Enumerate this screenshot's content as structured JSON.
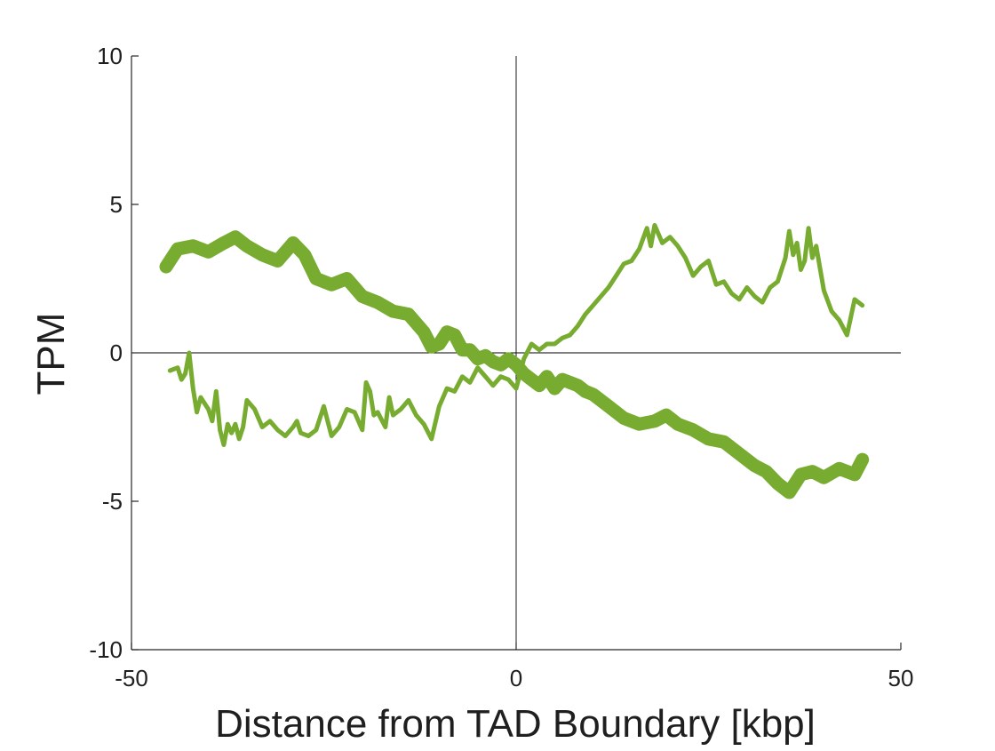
{
  "chart_data": {
    "type": "line",
    "title": "",
    "xlabel": "Distance from TAD Boundary [kbp]",
    "ylabel": "TPM",
    "xlim": [
      -50,
      50
    ],
    "ylim": [
      -10,
      10
    ],
    "xticks": [
      -50,
      0,
      50
    ],
    "yticks": [
      -10,
      -5,
      0,
      5,
      10
    ],
    "xtick_labels": [
      "-50",
      "0",
      "50"
    ],
    "ytick_labels": [
      "-10",
      "-5",
      "0",
      "5",
      "10"
    ],
    "grid": false,
    "legend": "none",
    "zero_lines": true,
    "series": [
      {
        "color": "#77ac30",
        "style": "thick",
        "x": [
          -45.5,
          -44,
          -42,
          -40,
          -38,
          -36.5,
          -35,
          -33,
          -31,
          -29,
          -27.5,
          -26,
          -24,
          -22,
          -20,
          -18,
          -16,
          -14,
          -12,
          -11,
          -10,
          -9,
          -8,
          -7,
          -6,
          -5,
          -4,
          -3,
          -2,
          -1,
          0,
          1,
          2,
          3,
          4,
          5,
          6,
          7,
          8,
          9,
          10,
          12,
          14,
          16,
          18,
          19.5,
          21,
          23,
          25,
          27,
          29,
          31,
          32.5,
          34,
          35.5,
          37,
          38.5,
          40,
          42,
          44,
          45
        ],
        "values": [
          2.9,
          3.5,
          3.6,
          3.4,
          3.7,
          3.9,
          3.6,
          3.3,
          3.1,
          3.7,
          3.3,
          2.5,
          2.3,
          2.5,
          1.9,
          1.7,
          1.4,
          1.3,
          0.7,
          0.2,
          0.3,
          0.7,
          0.6,
          0.1,
          0.1,
          -0.2,
          -0.1,
          -0.3,
          -0.4,
          -0.2,
          -0.4,
          -0.7,
          -0.9,
          -1.1,
          -0.8,
          -1.2,
          -0.9,
          -1.0,
          -1.1,
          -1.3,
          -1.4,
          -1.8,
          -2.2,
          -2.4,
          -2.3,
          -2.1,
          -2.4,
          -2.6,
          -2.9,
          -3.0,
          -3.4,
          -3.8,
          -4.0,
          -4.4,
          -4.7,
          -4.1,
          -4.0,
          -4.2,
          -3.9,
          -4.1,
          -3.6
        ]
      },
      {
        "color": "#77ac30",
        "style": "thin",
        "x": [
          -45,
          -44,
          -43.5,
          -43,
          -42.5,
          -42,
          -41.5,
          -41,
          -40,
          -39.5,
          -39,
          -38.5,
          -38,
          -37.5,
          -37,
          -36.5,
          -36,
          -35.5,
          -35,
          -34,
          -33,
          -32,
          -31,
          -30,
          -29,
          -28.5,
          -28,
          -27,
          -26,
          -25,
          -24.5,
          -24,
          -23,
          -22,
          -21,
          -20,
          -19.5,
          -19,
          -18.5,
          -18,
          -17,
          -16.5,
          -16,
          -15,
          -14,
          -13,
          -12,
          -11,
          -10,
          -9,
          -8,
          -7,
          -6,
          -5,
          -4,
          -3,
          -2,
          -1,
          0,
          1,
          2,
          3,
          4,
          5,
          6,
          7,
          8,
          9,
          10,
          11,
          12,
          13,
          14,
          15,
          16,
          17,
          17.5,
          18,
          19,
          20,
          21,
          22,
          23,
          24,
          25,
          26,
          27,
          28,
          29,
          30,
          31,
          32,
          33,
          34,
          35,
          35.5,
          36,
          36.5,
          37,
          37.5,
          38,
          38.5,
          39,
          40,
          41,
          42,
          43,
          44,
          45
        ],
        "values": [
          -0.6,
          -0.5,
          -0.9,
          -0.7,
          0.0,
          -1.2,
          -2.0,
          -1.5,
          -1.9,
          -2.3,
          -1.3,
          -2.6,
          -3.1,
          -2.4,
          -2.7,
          -2.4,
          -2.9,
          -2.5,
          -1.6,
          -1.9,
          -2.5,
          -2.3,
          -2.6,
          -2.8,
          -2.5,
          -2.3,
          -2.7,
          -2.8,
          -2.6,
          -1.8,
          -2.3,
          -2.8,
          -2.5,
          -1.9,
          -2.0,
          -2.6,
          -1.0,
          -1.3,
          -2.1,
          -2.0,
          -2.5,
          -1.5,
          -2.1,
          -1.9,
          -1.6,
          -2.1,
          -2.4,
          -2.9,
          -1.8,
          -1.2,
          -1.3,
          -0.8,
          -1.0,
          -0.5,
          -0.8,
          -1.1,
          -0.8,
          -0.9,
          -1.2,
          -0.2,
          0.3,
          0.1,
          0.3,
          0.3,
          0.5,
          0.6,
          0.9,
          1.3,
          1.6,
          1.9,
          2.2,
          2.6,
          3.0,
          3.1,
          3.5,
          4.2,
          3.6,
          4.3,
          3.7,
          3.9,
          3.6,
          3.2,
          2.6,
          2.9,
          3.1,
          2.3,
          2.4,
          2.0,
          1.8,
          2.2,
          1.9,
          1.7,
          2.2,
          2.4,
          3.2,
          4.1,
          3.3,
          3.7,
          2.8,
          3.1,
          4.2,
          3.2,
          3.6,
          2.1,
          1.4,
          1.1,
          0.6,
          1.8,
          1.6
        ]
      }
    ]
  }
}
